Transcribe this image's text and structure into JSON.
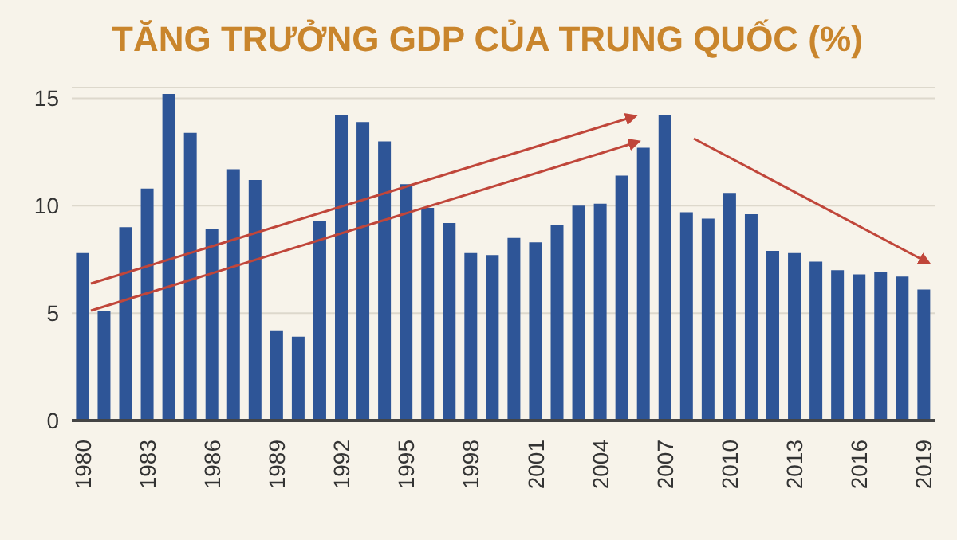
{
  "chart_data": {
    "type": "bar",
    "title": "TĂNG TRƯỞNG GDP CỦA TRUNG QUỐC (%)",
    "categories": [
      "1980",
      null,
      null,
      "1983",
      null,
      null,
      "1986",
      null,
      null,
      "1989",
      null,
      null,
      "1992",
      null,
      null,
      "1995",
      null,
      null,
      "1998",
      null,
      null,
      "2001",
      null,
      null,
      "2004",
      null,
      null,
      "2007",
      null,
      null,
      "2010",
      null,
      null,
      "2013",
      null,
      null,
      "2016",
      null,
      null,
      "2019"
    ],
    "values": [
      7.8,
      5.1,
      9.0,
      10.8,
      15.2,
      13.4,
      8.9,
      11.7,
      11.2,
      4.2,
      3.9,
      9.3,
      14.2,
      13.9,
      13.0,
      11.0,
      9.9,
      9.2,
      7.8,
      7.7,
      8.5,
      8.3,
      9.1,
      10.0,
      10.1,
      11.4,
      12.7,
      14.2,
      9.7,
      9.4,
      10.6,
      9.6,
      7.9,
      7.8,
      7.4,
      7.0,
      6.8,
      6.9,
      6.7,
      6.1
    ],
    "color": "#2e5597",
    "ylim": [
      0,
      15.5
    ],
    "yticks": [
      0,
      5,
      10,
      15
    ],
    "grid": "y"
  }
}
